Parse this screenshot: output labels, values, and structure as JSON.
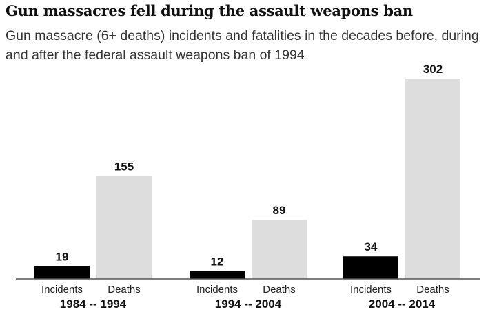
{
  "chart_data": {
    "type": "bar",
    "title": "Gun massacres fell during the assault weapons ban",
    "subtitle": "Gun massacre (6+ deaths) incidents and fatalities in the decades before, during and after the federal assault weapons ban of 1994",
    "categories": [
      "1984 -- 1994",
      "1994 -- 2004",
      "2004 -- 2014"
    ],
    "series": [
      {
        "name": "Incidents",
        "values": [
          19,
          12,
          34
        ],
        "color": "#000000"
      },
      {
        "name": "Deaths",
        "values": [
          155,
          89,
          302
        ],
        "color": "#dddddd"
      }
    ],
    "ylim": [
      0,
      302
    ],
    "grid": false,
    "xlabel": "",
    "ylabel": ""
  }
}
